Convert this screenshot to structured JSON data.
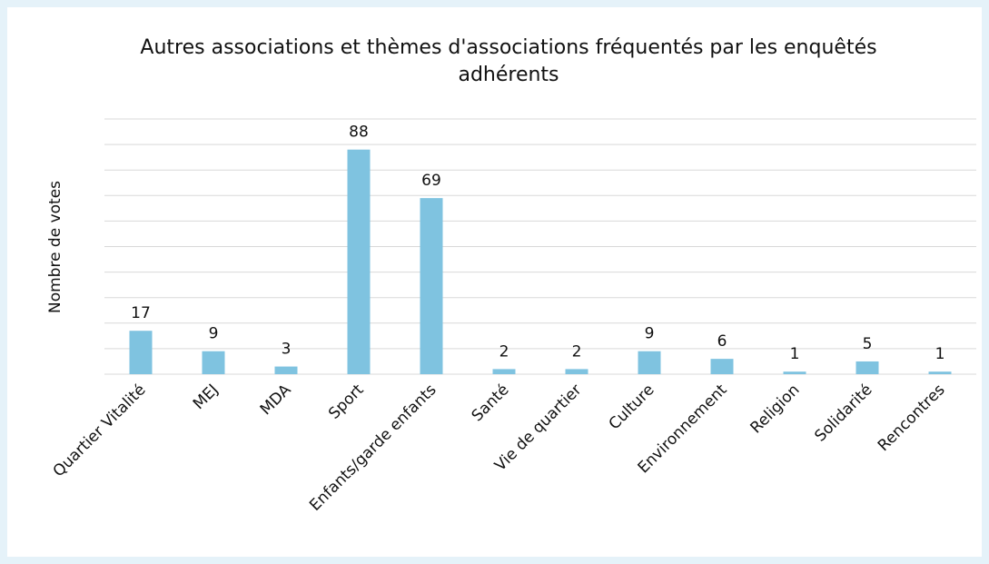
{
  "chart_data": {
    "type": "bar",
    "title": "Autres associations et thèmes d'associations fréquentés par les enquêtés adhérents",
    "y_label": "Nombre de votes",
    "categories": [
      "Quartier Vitalité",
      "MEJ",
      "MDA",
      "Sport",
      "Enfants/garde enfants",
      "Santé",
      "Vie de quartier",
      "Culture",
      "Environnement",
      "Religion",
      "Solidarité",
      "Rencontres"
    ],
    "values": [
      17,
      9,
      3,
      88,
      69,
      2,
      2,
      9,
      6,
      1,
      5,
      1
    ],
    "color": "#7fc3e0",
    "ylim": [
      0,
      100
    ],
    "yticks": [
      0,
      10,
      20,
      30,
      40,
      50,
      60,
      70,
      80,
      90,
      100
    ],
    "show_ytick_labels": false,
    "grid": true,
    "data_labels": true
  }
}
